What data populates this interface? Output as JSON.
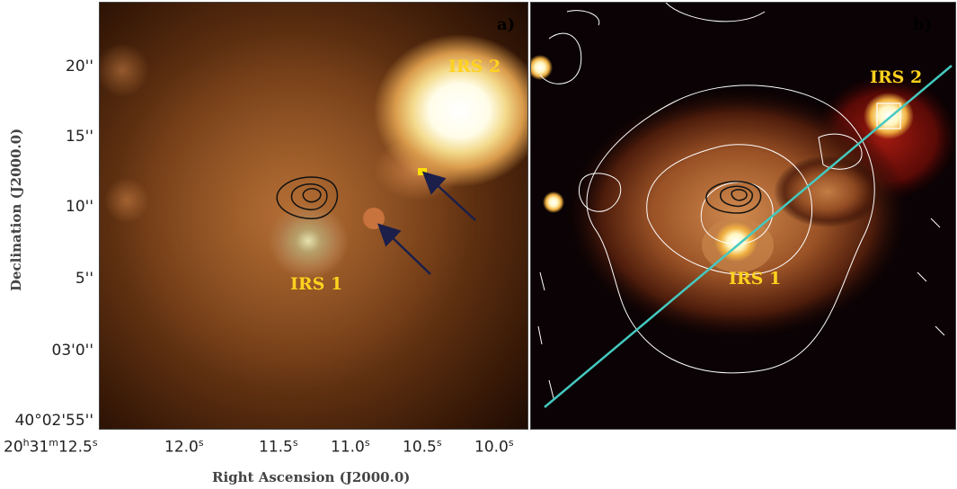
{
  "panel_a": {
    "label": "a)"
  },
  "panel_b": {
    "label": "b)"
  },
  "sources": {
    "irs1": "IRS 1",
    "irs2": "IRS 2"
  },
  "y_ticks": [
    "20''",
    "15''",
    "10''",
    "5''",
    "03'0''",
    "40°02'55''"
  ],
  "x_ticks": {
    "t1": {
      "h": "20",
      "hu": "h",
      "m": "31",
      "mu": "m",
      "s": "12.5",
      "su": "s"
    },
    "t2": {
      "v": "12.0",
      "u": "s"
    },
    "t3": {
      "v": "11.5",
      "u": "s"
    },
    "t4": {
      "v": "11.0",
      "u": "s"
    },
    "t5": {
      "v": "10.5",
      "u": "s"
    },
    "t6": {
      "v": "10.0",
      "u": "s"
    }
  },
  "axes": {
    "ylabel": "Declination (J2000.0)",
    "xlabel": "Right Ascension (J2000.0)"
  },
  "colors": {
    "label_yellow": "#ffd21f",
    "cut_line": "#44c9c0",
    "arrow": "#1b1f4a"
  }
}
